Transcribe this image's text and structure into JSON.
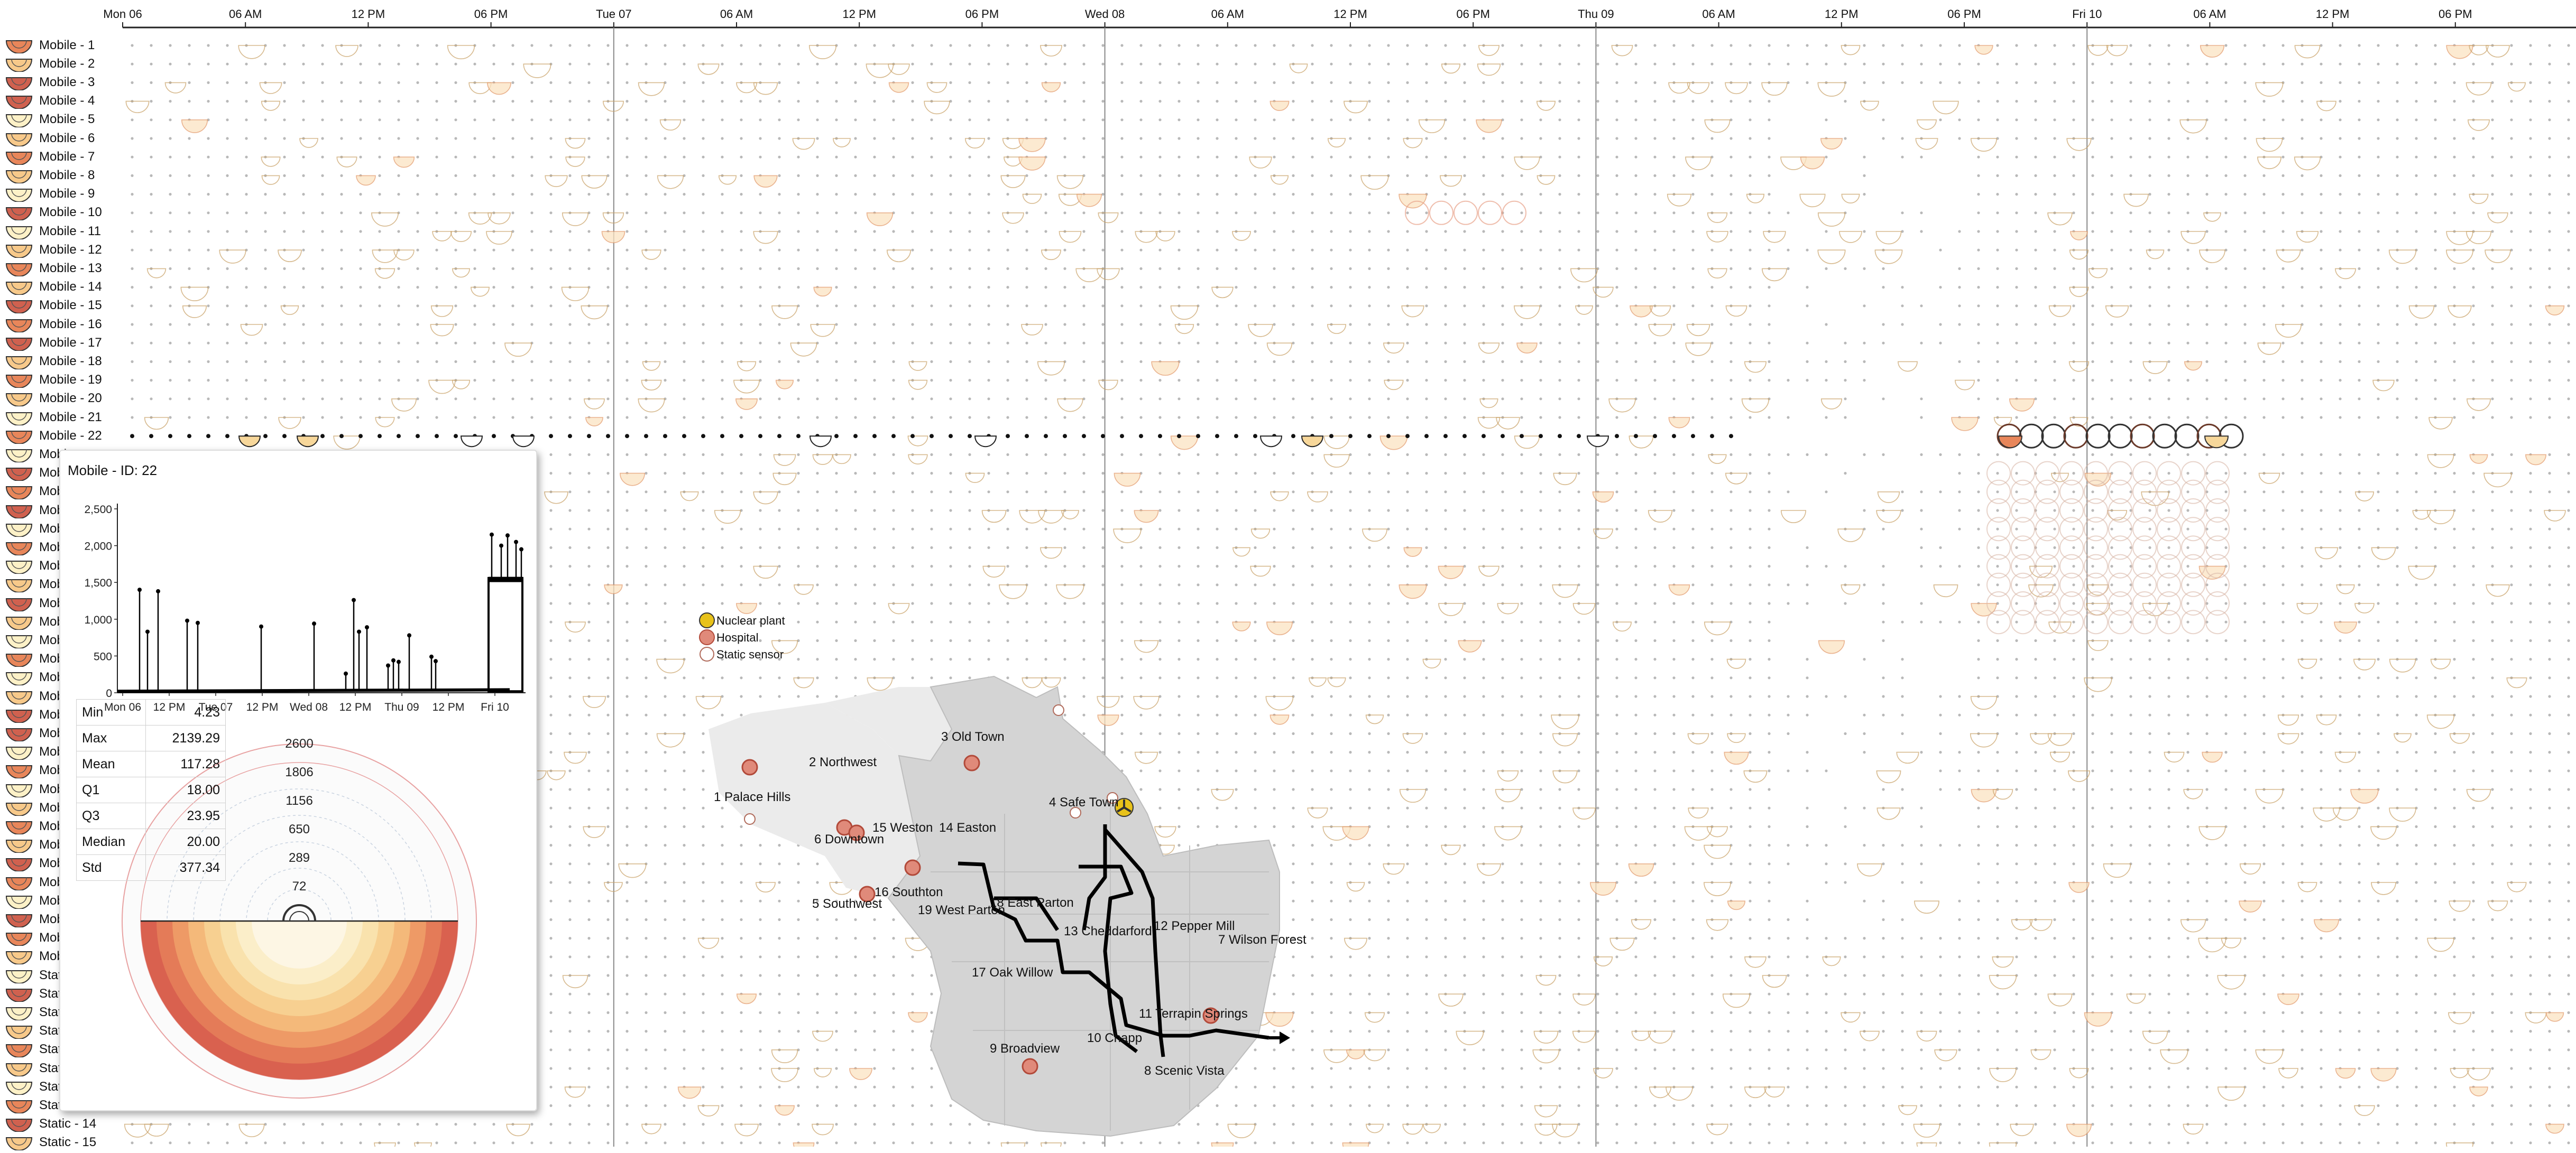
{
  "time_axis": {
    "ticks": [
      {
        "label": "Mon 06",
        "type": "day"
      },
      {
        "label": "06 AM",
        "type": "hour"
      },
      {
        "label": "12 PM",
        "type": "hour"
      },
      {
        "label": "06 PM",
        "type": "hour"
      },
      {
        "label": "Tue 07",
        "type": "day"
      },
      {
        "label": "06 AM",
        "type": "hour"
      },
      {
        "label": "12 PM",
        "type": "hour"
      },
      {
        "label": "06 PM",
        "type": "hour"
      },
      {
        "label": "Wed 08",
        "type": "day"
      },
      {
        "label": "06 AM",
        "type": "hour"
      },
      {
        "label": "12 PM",
        "type": "hour"
      },
      {
        "label": "06 PM",
        "type": "hour"
      },
      {
        "label": "Thu 09",
        "type": "day"
      },
      {
        "label": "06 AM",
        "type": "hour"
      },
      {
        "label": "12 PM",
        "type": "hour"
      },
      {
        "label": "06 PM",
        "type": "hour"
      },
      {
        "label": "Fri 10",
        "type": "day"
      },
      {
        "label": "06 AM",
        "type": "hour"
      },
      {
        "label": "12 PM",
        "type": "hour"
      },
      {
        "label": "06 PM",
        "type": "hour"
      }
    ]
  },
  "sensors": [
    "Mobile - 1",
    "Mobile - 2",
    "Mobile - 3",
    "Mobile - 4",
    "Mobile - 5",
    "Mobile - 6",
    "Mobile - 7",
    "Mobile - 8",
    "Mobile - 9",
    "Mobile - 10",
    "Mobile - 11",
    "Mobile - 12",
    "Mobile - 13",
    "Mobile - 14",
    "Mobile - 15",
    "Mobile - 16",
    "Mobile - 17",
    "Mobile - 18",
    "Mobile - 19",
    "Mobile - 20",
    "Mobile - 21",
    "Mobile - 22",
    "Mobi",
    "Mobi",
    "Mobi",
    "Mobi",
    "Mobi",
    "Mobi",
    "Mobi",
    "Mobi",
    "Mobi",
    "Mobi",
    "Mobi",
    "Mobi",
    "Mobi",
    "Mobi",
    "Mobi",
    "Mobi",
    "Mobi",
    "Mobi",
    "Mobi",
    "Mobi",
    "Mobi",
    "Mobi",
    "Mobi",
    "Mobi",
    "Mobi",
    "Mobi",
    "Mobi",
    "Mobi",
    "Stati",
    "Stati",
    "Stati",
    "Stati",
    "Stati",
    "Stati",
    "Stati",
    "Stati",
    "Static - 14",
    "Static - 15"
  ],
  "highlighted_sensor_index": 21,
  "tooltip": {
    "title": "Mobile - ID: 22",
    "line_chart": {
      "y_ticks": [
        "2,500",
        "2,000",
        "1,500",
        "1,000",
        "500",
        "0"
      ],
      "x_ticks": [
        "Mon 06",
        "12 PM",
        "Tue 07",
        "12 PM",
        "Wed 08",
        "12 PM",
        "Thu 09",
        "12 PM",
        "Fri 10"
      ]
    },
    "stats": [
      {
        "key": "Min",
        "value": "4.23"
      },
      {
        "key": "Max",
        "value": "2139.29"
      },
      {
        "key": "Mean",
        "value": "117.28"
      },
      {
        "key": "Q1",
        "value": "18.00"
      },
      {
        "key": "Q3",
        "value": "23.95"
      },
      {
        "key": "Median",
        "value": "20.00"
      },
      {
        "key": "Std",
        "value": "377.34"
      }
    ],
    "radial_ticks": [
      "2600",
      "1806",
      "1156",
      "650",
      "289",
      "72"
    ]
  },
  "map": {
    "legend": [
      {
        "label": "Nuclear plant",
        "icon": "nuclear-icon"
      },
      {
        "label": "Hospital",
        "icon": "hospital-icon"
      },
      {
        "label": "Static sensor",
        "icon": "static-sensor-icon"
      }
    ],
    "neighborhoods": [
      "1 Palace Hills",
      "2 Northwest",
      "3 Old Town",
      "4 Safe Town",
      "5 Southwest",
      "6 Downtown",
      "7 Wilson Forest",
      "8 Scenic Vista",
      "9 Broadview",
      "10 Chapp",
      "11 Terrapin Springs",
      "12 Pepper Mill",
      "13 Cheddarford",
      "14 Easton",
      "15 Weston",
      "16 Southton",
      "17 Oak Willow",
      "18 East Parton",
      "19 West Parton"
    ]
  },
  "colors": {
    "gridline": "#888888",
    "dot": "#b8b8b8",
    "glyph_stroke": "#c9a36a",
    "highlight_row": "#111111",
    "map_fill": "#d4d4d4",
    "map_fill_light": "#ebebeb",
    "hospital": "#d0614f",
    "nuclear": "#e8c21a",
    "route": "#000000"
  }
}
